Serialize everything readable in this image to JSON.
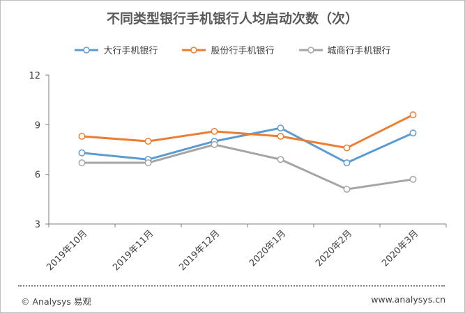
{
  "footer": {
    "copyright": "© Analysys 易观",
    "website": "www.analysys.cn"
  },
  "chart_data": {
    "type": "line",
    "title": "不同类型银行手机银行人均启动次数（次）",
    "categories": [
      "2019年10月",
      "2019年11月",
      "2019年12月",
      "2020年1月",
      "2020年2月",
      "2020年3月"
    ],
    "ylim": [
      3,
      12
    ],
    "yticks": [
      3,
      6,
      9,
      12
    ],
    "grid": false,
    "legend_position": "top",
    "series": [
      {
        "name": "大行手机银行",
        "color": "#5b9bd5",
        "values": [
          7.3,
          6.9,
          8.0,
          8.8,
          6.7,
          8.5
        ]
      },
      {
        "name": "股份行手机银行",
        "color": "#ed7d31",
        "values": [
          8.3,
          8.0,
          8.6,
          8.3,
          7.6,
          9.6
        ]
      },
      {
        "name": "城商行手机银行",
        "color": "#a5a5a5",
        "values": [
          6.7,
          6.7,
          7.8,
          6.9,
          5.1,
          5.7
        ]
      }
    ]
  }
}
